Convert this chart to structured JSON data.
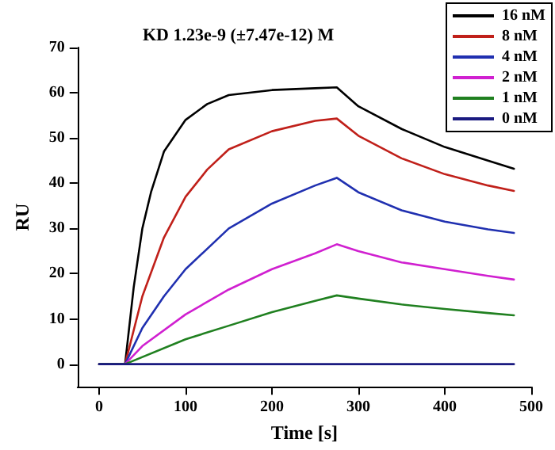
{
  "chart_data": {
    "type": "line",
    "title": "KD 1.23e-9 (±7.47e-12) M",
    "xlabel": "Time [s]",
    "ylabel": "RU",
    "xlim": [
      -25,
      500
    ],
    "xticks": [
      0,
      100,
      200,
      300,
      400,
      500
    ],
    "ylim": [
      -5,
      70
    ],
    "yticks": [
      0,
      10,
      20,
      30,
      40,
      50,
      60,
      70
    ],
    "grid": false,
    "legend": "top right",
    "marker": "none",
    "line_style": "solid",
    "series": [
      {
        "name": "16 nM",
        "color": "#000000",
        "x": [
          0,
          30,
          40,
          50,
          60,
          75,
          100,
          125,
          150,
          200,
          250,
          275,
          300,
          350,
          400,
          450,
          480
        ],
        "values": [
          0,
          0,
          17,
          30,
          38,
          47,
          54,
          57.5,
          59.5,
          60.6,
          61,
          61.2,
          57,
          52,
          48,
          45,
          43.2
        ]
      },
      {
        "name": "8 nM",
        "color": "#c0201a",
        "x": [
          0,
          30,
          50,
          75,
          100,
          125,
          150,
          200,
          250,
          275,
          300,
          350,
          400,
          450,
          480
        ],
        "values": [
          0,
          0,
          15,
          28,
          37,
          43,
          47.5,
          51.5,
          53.8,
          54.3,
          50.5,
          45.5,
          42,
          39.5,
          38.3
        ]
      },
      {
        "name": "4 nM",
        "color": "#2030b0",
        "x": [
          0,
          30,
          50,
          75,
          100,
          150,
          200,
          250,
          275,
          300,
          350,
          400,
          450,
          480
        ],
        "values": [
          0,
          0,
          8,
          15,
          21,
          30,
          35.5,
          39.5,
          41.2,
          38,
          34,
          31.5,
          29.8,
          29
        ]
      },
      {
        "name": "2 nM",
        "color": "#d020d0",
        "x": [
          0,
          30,
          50,
          100,
          150,
          200,
          250,
          275,
          300,
          350,
          400,
          450,
          480
        ],
        "values": [
          0,
          0,
          4,
          11,
          16.5,
          21,
          24.5,
          26.5,
          25,
          22.5,
          21,
          19.5,
          18.7
        ]
      },
      {
        "name": "1 nM",
        "color": "#208020",
        "x": [
          0,
          30,
          100,
          150,
          200,
          250,
          275,
          300,
          350,
          400,
          450,
          480
        ],
        "values": [
          0,
          0,
          5.5,
          8.5,
          11.5,
          14,
          15.2,
          14.5,
          13.2,
          12.2,
          11.3,
          10.8
        ]
      },
      {
        "name": "0 nM",
        "color": "#1a1a80",
        "x": [
          0,
          480
        ],
        "values": [
          0,
          0
        ]
      }
    ]
  }
}
